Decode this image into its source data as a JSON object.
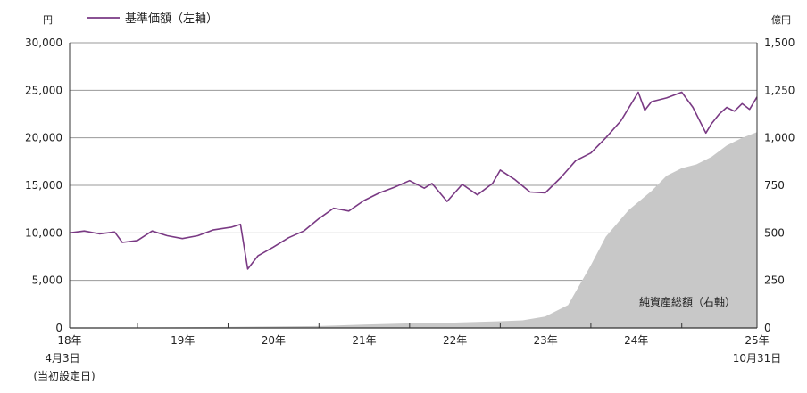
{
  "chart_data": {
    "type": "line",
    "units": {
      "left": "円",
      "right": "億円"
    },
    "legend": {
      "nav_label": "基準価額（左軸）",
      "placement": "top-left"
    },
    "area_label": "純資産総額（右軸）",
    "colors": {
      "nav_line": "#7a3a84",
      "area_fill": "#c8c8c8",
      "grid": "#9a9a9a",
      "axis": "#333333"
    },
    "y_left": {
      "min": 0,
      "max": 30000,
      "ticks": [
        "0",
        "5,000",
        "10,000",
        "15,000",
        "20,000",
        "25,000",
        "30,000"
      ]
    },
    "y_right": {
      "min": 0,
      "max": 1500,
      "ticks": [
        "0",
        "250",
        "500",
        "750",
        "1,000",
        "1,250",
        "1,500"
      ]
    },
    "x_axis": {
      "start": "2018-04-03",
      "end": "2025-10-31",
      "tick_labels": [
        "18年",
        "19年",
        "20年",
        "21年",
        "22年",
        "23年",
        "24年",
        "25年"
      ],
      "start_date_lines": [
        "4月3日",
        "(当初設定日)"
      ],
      "end_date_label": "10月31日"
    },
    "nav_series": {
      "name": "基準価額（左軸）",
      "x": [
        "2018-04-03",
        "2018-06-01",
        "2018-08-01",
        "2018-10-01",
        "2018-11-01",
        "2019-01-01",
        "2019-03-01",
        "2019-05-01",
        "2019-07-01",
        "2019-09-01",
        "2019-11-01",
        "2020-01-15",
        "2020-02-20",
        "2020-03-20",
        "2020-05-01",
        "2020-07-01",
        "2020-09-01",
        "2020-11-01",
        "2021-01-01",
        "2021-03-01",
        "2021-05-01",
        "2021-07-01",
        "2021-09-01",
        "2021-11-01",
        "2022-01-01",
        "2022-03-01",
        "2022-04-01",
        "2022-06-01",
        "2022-08-01",
        "2022-10-01",
        "2022-12-01",
        "2023-01-01",
        "2023-03-01",
        "2023-05-01",
        "2023-07-01",
        "2023-09-01",
        "2023-11-01",
        "2024-01-01",
        "2024-03-01",
        "2024-05-01",
        "2024-07-10",
        "2024-08-05",
        "2024-09-01",
        "2024-11-01",
        "2025-01-01",
        "2025-02-15",
        "2025-04-08",
        "2025-05-01",
        "2025-06-01",
        "2025-07-01",
        "2025-08-01",
        "2025-09-01",
        "2025-10-01",
        "2025-10-31"
      ],
      "y": [
        10000,
        10200,
        9900,
        10100,
        9000,
        9200,
        10200,
        9700,
        9400,
        9700,
        10300,
        10600,
        10900,
        6200,
        7600,
        8500,
        9500,
        10200,
        11500,
        12600,
        12300,
        13400,
        14200,
        14800,
        15500,
        14700,
        15200,
        13300,
        15100,
        14000,
        15200,
        16600,
        15600,
        14300,
        14200,
        15800,
        17600,
        18400,
        20000,
        21800,
        24800,
        22900,
        23800,
        24200,
        24800,
        23200,
        20500,
        21500,
        22500,
        23200,
        22800,
        23600,
        23000,
        24300
      ]
    },
    "aum_series": {
      "name": "純資産総額（右軸）",
      "x": [
        "2018-04-03",
        "2019-01-01",
        "2020-01-01",
        "2021-01-01",
        "2021-07-01",
        "2022-01-01",
        "2022-07-01",
        "2023-01-01",
        "2023-04-01",
        "2023-07-01",
        "2023-10-01",
        "2024-01-01",
        "2024-03-01",
        "2024-06-01",
        "2024-09-01",
        "2024-11-01",
        "2025-01-01",
        "2025-03-01",
        "2025-05-01",
        "2025-07-01",
        "2025-09-01",
        "2025-10-31"
      ],
      "y": [
        0,
        2,
        5,
        10,
        18,
        24,
        28,
        35,
        40,
        60,
        120,
        330,
        480,
        620,
        720,
        800,
        840,
        860,
        900,
        960,
        1000,
        1030
      ]
    }
  }
}
